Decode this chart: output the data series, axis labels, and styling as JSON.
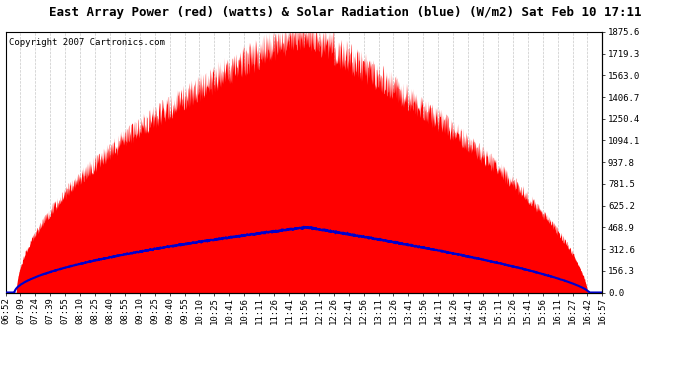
{
  "title": "East Array Power (red) (watts) & Solar Radiation (blue) (W/m2) Sat Feb 10 17:11",
  "copyright": "Copyright 2007 Cartronics.com",
  "ymax": 1875.6,
  "yticks": [
    0.0,
    156.3,
    312.6,
    468.9,
    625.2,
    781.5,
    937.8,
    1094.1,
    1250.4,
    1406.7,
    1563.0,
    1719.3,
    1875.6
  ],
  "xtick_labels": [
    "06:52",
    "07:09",
    "07:24",
    "07:39",
    "07:55",
    "08:10",
    "08:25",
    "08:40",
    "08:55",
    "09:10",
    "09:25",
    "09:40",
    "09:55",
    "10:10",
    "10:25",
    "10:41",
    "10:56",
    "11:11",
    "11:26",
    "11:41",
    "11:56",
    "12:11",
    "12:26",
    "12:41",
    "12:56",
    "13:11",
    "13:26",
    "13:41",
    "13:56",
    "14:11",
    "14:26",
    "14:41",
    "14:56",
    "15:11",
    "15:26",
    "15:41",
    "15:56",
    "16:11",
    "16:27",
    "16:42",
    "16:57"
  ],
  "bg_color": "#ffffff",
  "grid_color": "#c8c8c8",
  "red_color": "#ff0000",
  "blue_color": "#0000cc",
  "title_fontsize": 9,
  "tick_fontsize": 6.5,
  "copyright_fontsize": 6.5
}
